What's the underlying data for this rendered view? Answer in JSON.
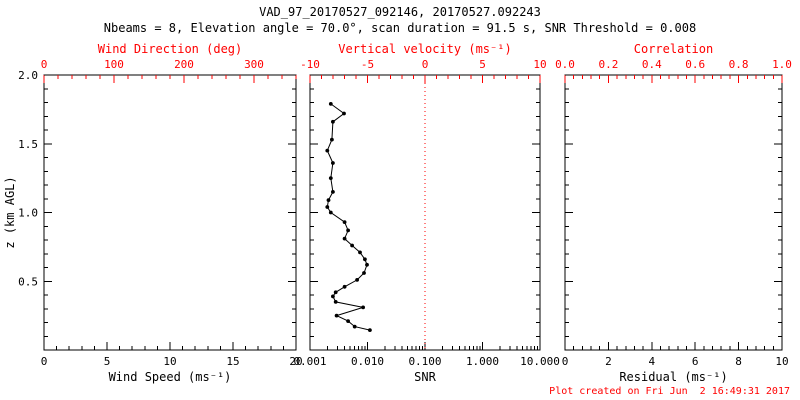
{
  "title": "VAD_97_20170527_092146, 20170527.092243",
  "subtitle": "Nbeams = 8, Elevation angle = 70.0°, scan duration = 91.5 s, SNR Threshold = 0.008",
  "footer": "Plot created on Fri Jun  2 16:49:31 2017",
  "colors": {
    "background": "#ffffff",
    "frame": "#000000",
    "top_axis": "#ff0000",
    "bottom_axis": "#000000",
    "series": "#000000",
    "reference_line": "#ff0000"
  },
  "chart_data": [
    {
      "type": "line",
      "panel": "wind-speed-direction",
      "bottom_axis": {
        "label": "Wind Speed (ms⁻¹)",
        "scale": "linear",
        "range": [
          0,
          20
        ],
        "ticks": [
          0,
          5,
          10,
          15,
          20
        ],
        "tick_labels": [
          "0",
          "5",
          "10",
          "15",
          "20"
        ]
      },
      "top_axis": {
        "label": "Wind Direction (deg)",
        "scale": "linear",
        "range": [
          0,
          360
        ],
        "ticks": [
          0,
          100,
          200,
          300
        ],
        "tick_labels": [
          "0",
          "100",
          "200",
          "300"
        ]
      },
      "y_axis": {
        "label": "z (km AGL)",
        "scale": "linear",
        "range": [
          0,
          2
        ],
        "ticks": [
          0,
          0.5,
          1,
          1.5,
          2
        ],
        "tick_labels": [
          "",
          "0.5",
          "1.0",
          "1.5",
          "2.0"
        ],
        "show_labels": true
      },
      "series": []
    },
    {
      "type": "line",
      "panel": "snr",
      "bottom_axis": {
        "label": "SNR",
        "scale": "log",
        "range": [
          0.001,
          10
        ],
        "ticks": [
          0.001,
          0.01,
          0.1,
          1,
          10
        ],
        "tick_labels": [
          "0.001",
          "0.010",
          "0.100",
          "1.000",
          "10.000"
        ]
      },
      "top_axis": {
        "label": "Vertical velocity (ms⁻¹)",
        "scale": "linear",
        "range": [
          -10,
          10
        ],
        "ticks": [
          -10,
          -5,
          0,
          5,
          10
        ],
        "tick_labels": [
          "-10",
          "-5",
          "0",
          "5",
          "10"
        ]
      },
      "y_axis": {
        "label": "",
        "scale": "linear",
        "range": [
          0,
          2
        ],
        "ticks": [
          0,
          0.5,
          1,
          1.5,
          2
        ],
        "tick_labels": [
          "",
          "",
          "",
          "",
          ""
        ],
        "show_labels": false
      },
      "reference_line": {
        "axis": "top",
        "value": 0,
        "style": "dotted",
        "color": "#ff0000"
      },
      "series": [
        {
          "name": "SNR profile",
          "color": "#000000",
          "marker": "dot",
          "points_format": [
            "z_km",
            "snr"
          ],
          "points": [
            [
              1.79,
              0.0023
            ],
            [
              1.72,
              0.0039
            ],
            [
              1.66,
              0.0025
            ],
            [
              1.53,
              0.0024
            ],
            [
              1.45,
              0.002
            ],
            [
              1.36,
              0.0025
            ],
            [
              1.25,
              0.0023
            ],
            [
              1.15,
              0.0025
            ],
            [
              1.09,
              0.0021
            ],
            [
              1.04,
              0.002
            ],
            [
              1.0,
              0.0023
            ],
            [
              0.93,
              0.004
            ],
            [
              0.87,
              0.0046
            ],
            [
              0.81,
              0.004
            ],
            [
              0.76,
              0.0054
            ],
            [
              0.71,
              0.0074
            ],
            [
              0.66,
              0.009
            ],
            [
              0.62,
              0.0098
            ],
            [
              0.56,
              0.0087
            ],
            [
              0.51,
              0.0066
            ],
            [
              0.46,
              0.004
            ],
            [
              0.42,
              0.0028
            ],
            [
              0.39,
              0.0025
            ],
            [
              0.35,
              0.0028
            ],
            [
              0.31,
              0.0084
            ],
            [
              0.25,
              0.0029
            ],
            [
              0.21,
              0.0046
            ],
            [
              0.17,
              0.006
            ],
            [
              0.145,
              0.011
            ]
          ]
        }
      ]
    },
    {
      "type": "line",
      "panel": "residual-correlation",
      "bottom_axis": {
        "label": "Residual (ms⁻¹)",
        "scale": "linear",
        "range": [
          0,
          10
        ],
        "ticks": [
          0,
          2,
          4,
          6,
          8,
          10
        ],
        "tick_labels": [
          "0",
          "2",
          "4",
          "6",
          "8",
          "10"
        ]
      },
      "top_axis": {
        "label": "Correlation",
        "scale": "linear",
        "range": [
          0,
          1
        ],
        "ticks": [
          0,
          0.2,
          0.4,
          0.6,
          0.8,
          1
        ],
        "tick_labels": [
          "0.0",
          "0.2",
          "0.4",
          "0.6",
          "0.8",
          "1.0"
        ]
      },
      "y_axis": {
        "label": "",
        "scale": "linear",
        "range": [
          0,
          2
        ],
        "ticks": [
          0,
          0.5,
          1,
          1.5,
          2
        ],
        "tick_labels": [
          "",
          "",
          "",
          "",
          ""
        ],
        "show_labels": false
      },
      "series": []
    }
  ]
}
